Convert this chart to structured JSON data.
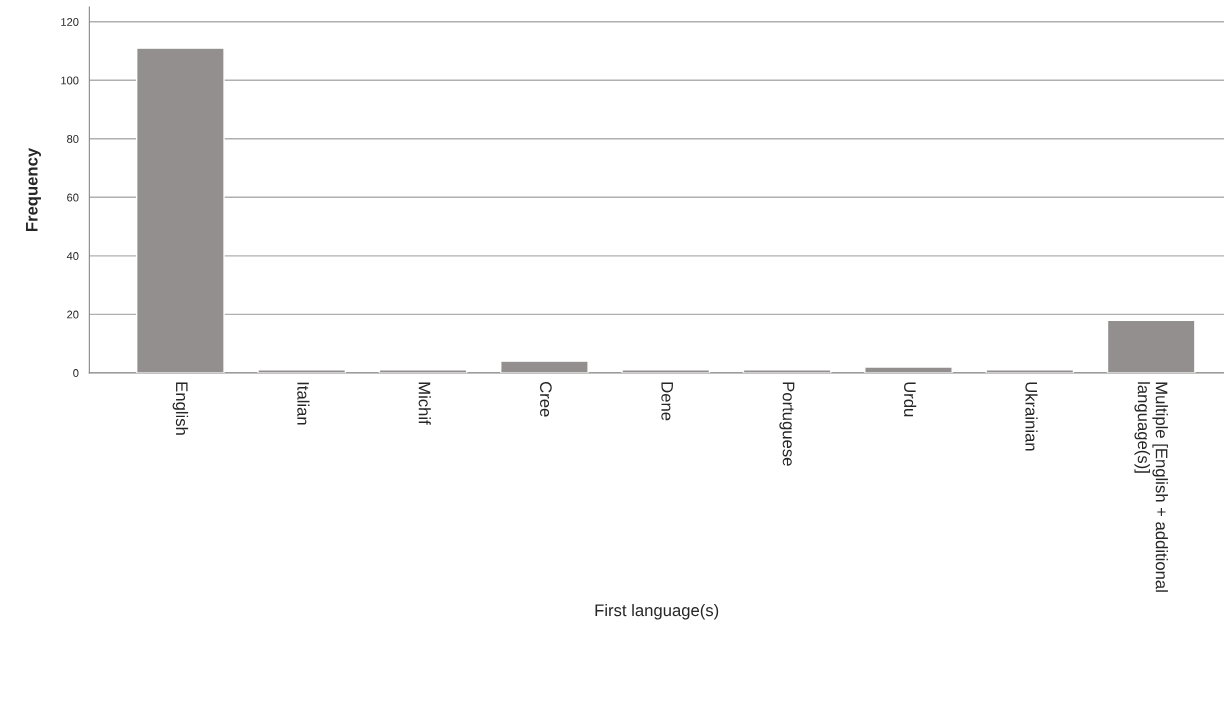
{
  "chart_data": {
    "type": "bar",
    "xlabel": "First language(s)",
    "ylabel": "Frequency",
    "categories": [
      "English",
      "Italian",
      "Michif",
      "Cree",
      "Dene",
      "Portuguese",
      "Urdu",
      "Ukrainian",
      "Multiple [English + additional\nlanguage(s)]"
    ],
    "values": [
      111,
      1,
      1,
      4,
      1,
      1,
      2,
      1,
      18
    ],
    "color": "#938f8e",
    "ylim": [
      0,
      125
    ],
    "yticks": [
      0,
      20,
      40,
      60,
      80,
      100,
      120
    ],
    "grid": "y"
  }
}
